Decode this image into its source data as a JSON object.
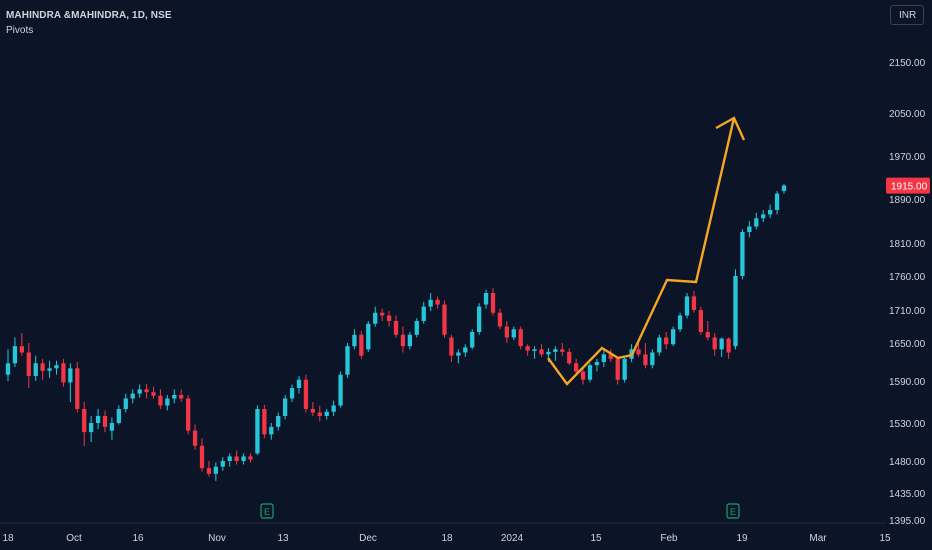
{
  "header": {
    "symbol": "MAHINDRA &MAHINDRA, 1D, NSE",
    "indicator": "Pivots",
    "currency": "INR"
  },
  "colors": {
    "background": "#0c1428",
    "up": "#26c6da",
    "down": "#f23645",
    "projection": "#f5a623",
    "axis_text": "#d1d4dc",
    "earnings": "#1e9e6a"
  },
  "chart_data": {
    "type": "candlestick",
    "y_axis_ticks": [
      "2150.00",
      "2050.00",
      "1970.00",
      "1890.00",
      "1810.00",
      "1760.00",
      "1710.00",
      "1650.00",
      "1590.00",
      "1530.00",
      "1480.00",
      "1435.00",
      "1395.00"
    ],
    "y_axis_values": [
      2150,
      2050,
      1970,
      1890,
      1810,
      1760,
      1710,
      1650,
      1590,
      1530,
      1480,
      1435,
      1395
    ],
    "x_axis_labels": [
      "18",
      "Oct",
      "16",
      "Nov",
      "13",
      "Dec",
      "18",
      "2024",
      "15",
      "Feb",
      "19",
      "Mar",
      "15"
    ],
    "last_price": "1915.00",
    "earnings_markers": [
      "E",
      "E"
    ],
    "candles": [
      [
        1600,
        1640,
        1590,
        1618
      ],
      [
        1618,
        1660,
        1612,
        1645
      ],
      [
        1645,
        1668,
        1630,
        1635
      ],
      [
        1635,
        1650,
        1580,
        1598
      ],
      [
        1598,
        1630,
        1590,
        1618
      ],
      [
        1618,
        1625,
        1592,
        1606
      ],
      [
        1606,
        1622,
        1595,
        1610
      ],
      [
        1610,
        1622,
        1600,
        1615
      ],
      [
        1618,
        1625,
        1582,
        1588
      ],
      [
        1588,
        1618,
        1560,
        1610
      ],
      [
        1610,
        1620,
        1545,
        1550
      ],
      [
        1550,
        1560,
        1500,
        1518
      ],
      [
        1518,
        1540,
        1505,
        1530
      ],
      [
        1530,
        1550,
        1522,
        1540
      ],
      [
        1540,
        1548,
        1518,
        1525
      ],
      [
        1520,
        1538,
        1508,
        1530
      ],
      [
        1530,
        1555,
        1528,
        1550
      ],
      [
        1550,
        1572,
        1545,
        1565
      ],
      [
        1565,
        1578,
        1558,
        1572
      ],
      [
        1572,
        1585,
        1566,
        1578
      ],
      [
        1578,
        1586,
        1565,
        1574
      ],
      [
        1574,
        1582,
        1565,
        1569
      ],
      [
        1569,
        1578,
        1550,
        1555
      ],
      [
        1555,
        1570,
        1548,
        1565
      ],
      [
        1565,
        1578,
        1558,
        1570
      ],
      [
        1570,
        1578,
        1560,
        1565
      ],
      [
        1565,
        1570,
        1515,
        1520
      ],
      [
        1520,
        1528,
        1495,
        1500
      ],
      [
        1500,
        1510,
        1465,
        1470
      ],
      [
        1470,
        1480,
        1458,
        1462
      ],
      [
        1462,
        1478,
        1452,
        1472
      ],
      [
        1472,
        1485,
        1466,
        1480
      ],
      [
        1480,
        1490,
        1472,
        1486
      ],
      [
        1486,
        1494,
        1475,
        1480
      ],
      [
        1480,
        1490,
        1475,
        1486
      ],
      [
        1486,
        1490,
        1478,
        1482
      ],
      [
        1490,
        1555,
        1488,
        1550
      ],
      [
        1550,
        1556,
        1510,
        1515
      ],
      [
        1515,
        1530,
        1508,
        1525
      ],
      [
        1525,
        1545,
        1520,
        1540
      ],
      [
        1540,
        1570,
        1535,
        1565
      ],
      [
        1565,
        1585,
        1560,
        1580
      ],
      [
        1580,
        1598,
        1572,
        1592
      ],
      [
        1592,
        1600,
        1545,
        1550
      ],
      [
        1550,
        1560,
        1540,
        1545
      ],
      [
        1545,
        1555,
        1532,
        1540
      ],
      [
        1540,
        1550,
        1535,
        1546
      ],
      [
        1546,
        1562,
        1540,
        1555
      ],
      [
        1555,
        1605,
        1552,
        1600
      ],
      [
        1600,
        1650,
        1595,
        1645
      ],
      [
        1645,
        1675,
        1640,
        1665
      ],
      [
        1665,
        1672,
        1625,
        1630
      ],
      [
        1640,
        1690,
        1636,
        1685
      ],
      [
        1685,
        1715,
        1680,
        1705
      ],
      [
        1705,
        1712,
        1690,
        1700
      ],
      [
        1700,
        1708,
        1680,
        1690
      ],
      [
        1690,
        1700,
        1660,
        1665
      ],
      [
        1665,
        1680,
        1635,
        1645
      ],
      [
        1645,
        1670,
        1640,
        1665
      ],
      [
        1665,
        1695,
        1660,
        1690
      ],
      [
        1690,
        1722,
        1685,
        1715
      ],
      [
        1715,
        1735,
        1708,
        1725
      ],
      [
        1725,
        1730,
        1712,
        1718
      ],
      [
        1718,
        1724,
        1660,
        1665
      ],
      [
        1660,
        1665,
        1620,
        1630
      ],
      [
        1630,
        1640,
        1618,
        1635
      ],
      [
        1635,
        1648,
        1628,
        1643
      ],
      [
        1643,
        1675,
        1640,
        1670
      ],
      [
        1670,
        1720,
        1665,
        1715
      ],
      [
        1718,
        1740,
        1712,
        1735
      ],
      [
        1735,
        1742,
        1700,
        1705
      ],
      [
        1705,
        1712,
        1675,
        1680
      ],
      [
        1680,
        1690,
        1650,
        1660
      ],
      [
        1660,
        1680,
        1655,
        1675
      ],
      [
        1675,
        1680,
        1640,
        1645
      ],
      [
        1645,
        1648,
        1630,
        1638
      ],
      [
        1638,
        1645,
        1625,
        1640
      ],
      [
        1640,
        1648,
        1628,
        1632
      ],
      [
        1632,
        1642,
        1620,
        1636
      ],
      [
        1636,
        1645,
        1622,
        1640
      ],
      [
        1640,
        1650,
        1630,
        1636
      ],
      [
        1636,
        1642,
        1615,
        1618
      ],
      [
        1618,
        1625,
        1600,
        1605
      ],
      [
        1605,
        1612,
        1585,
        1592
      ],
      [
        1592,
        1618,
        1588,
        1615
      ],
      [
        1615,
        1625,
        1605,
        1620
      ],
      [
        1620,
        1640,
        1612,
        1632
      ],
      [
        1632,
        1640,
        1620,
        1625
      ],
      [
        1625,
        1628,
        1585,
        1592
      ],
      [
        1592,
        1630,
        1588,
        1625
      ],
      [
        1625,
        1648,
        1620,
        1640
      ],
      [
        1640,
        1650,
        1628,
        1632
      ],
      [
        1632,
        1650,
        1610,
        1615
      ],
      [
        1615,
        1640,
        1610,
        1635
      ],
      [
        1635,
        1665,
        1630,
        1660
      ],
      [
        1660,
        1670,
        1640,
        1648
      ],
      [
        1648,
        1680,
        1645,
        1675
      ],
      [
        1675,
        1705,
        1670,
        1700
      ],
      [
        1700,
        1735,
        1695,
        1730
      ],
      [
        1730,
        1738,
        1705,
        1710
      ],
      [
        1710,
        1715,
        1665,
        1670
      ],
      [
        1670,
        1690,
        1655,
        1660
      ],
      [
        1660,
        1668,
        1630,
        1640
      ],
      [
        1640,
        1660,
        1628,
        1658
      ],
      [
        1658,
        1660,
        1625,
        1635
      ],
      [
        1645,
        1770,
        1640,
        1760
      ],
      [
        1760,
        1835,
        1755,
        1830
      ],
      [
        1830,
        1850,
        1820,
        1840
      ],
      [
        1840,
        1865,
        1835,
        1855
      ],
      [
        1855,
        1870,
        1848,
        1862
      ],
      [
        1862,
        1880,
        1855,
        1870
      ],
      [
        1870,
        1905,
        1862,
        1900
      ],
      [
        1905,
        1918,
        1900,
        1915
      ]
    ],
    "projection": [
      [
        1650,
        1590
      ],
      [
        1660,
        1590
      ],
      [
        1660,
        1590
      ],
      [
        1660,
        1590
      ]
    ]
  }
}
